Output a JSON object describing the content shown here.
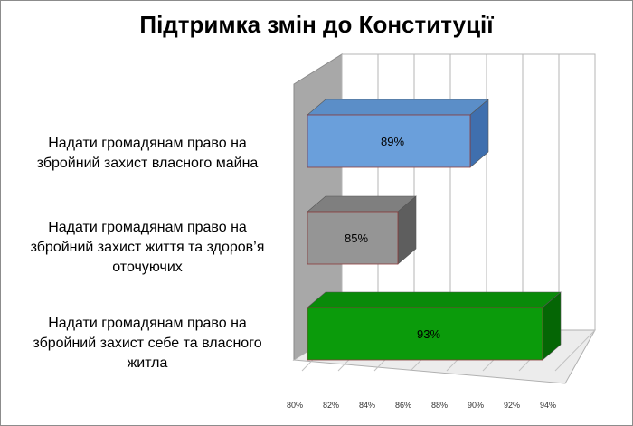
{
  "chart_data": {
    "type": "bar",
    "orientation": "horizontal",
    "style": "3d",
    "title": "Підтримка змін до Конституції",
    "categories": [
      "Надати громадянам право на збройний захист власного майна",
      "Надати громадянам право на збройний захист життя та здоров’я оточуючих",
      "Надати громадянам право на збройний захист себе та власного житла"
    ],
    "category_lines": [
      [
        "Надати громадянам право на",
        "збройний захист власного майна"
      ],
      [
        "Надати громадянам право на",
        "збройний захист життя та здоров’я",
        "оточуючих"
      ],
      [
        "Надати громадянам право на",
        "збройний захист себе та власного",
        "житла"
      ]
    ],
    "values": [
      89,
      85,
      93
    ],
    "data_labels": [
      "89%",
      "85%",
      "93%"
    ],
    "xlim": [
      80,
      94
    ],
    "x_ticks": [
      80,
      82,
      84,
      86,
      88,
      90,
      92,
      94
    ],
    "x_tick_labels": [
      "80%",
      "82%",
      "84%",
      "86%",
      "88%",
      "90%",
      "92%",
      "94%"
    ],
    "grid": true,
    "legend": "none",
    "colors": {
      "bars": [
        "#6a9fdb",
        "#959595",
        "#0b9b0b"
      ],
      "bar_tops": [
        "#5b8ec8",
        "#7f7f7f",
        "#098a09"
      ],
      "bar_sides": [
        "#3f6fae",
        "#5e5e5e",
        "#056605"
      ],
      "wall": "#a8a8a8",
      "floor": "#ececec"
    }
  }
}
